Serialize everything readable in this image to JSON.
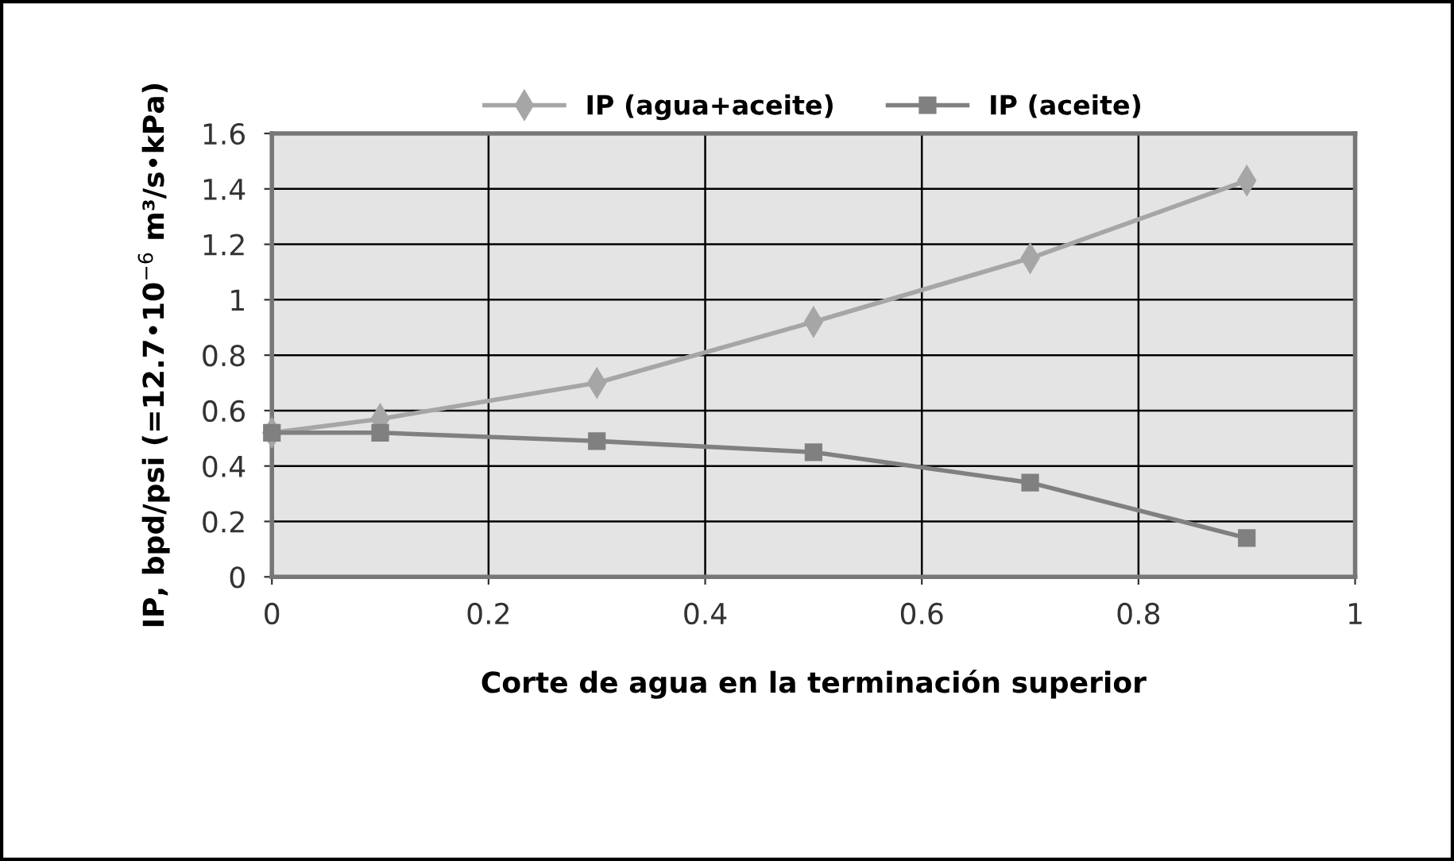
{
  "chart_data": {
    "type": "line",
    "xlabel": "Corte de agua en la terminación superior",
    "ylabel": "IP, bpd/psi (=12.7•10$^{−6}$ m³/s•kPa)",
    "x": [
      0,
      0.1,
      0.3,
      0.5,
      0.7,
      0.9
    ],
    "series": [
      {
        "name": "IP (agua+aceite)",
        "color": "#a6a6a6",
        "marker": "diamond",
        "values": [
          0.52,
          0.57,
          0.7,
          0.92,
          1.15,
          1.43
        ]
      },
      {
        "name": "IP (aceite)",
        "color": "#808080",
        "marker": "square",
        "values": [
          0.52,
          0.52,
          0.49,
          0.45,
          0.34,
          0.14
        ]
      }
    ],
    "xlim": [
      0,
      1
    ],
    "xticks": [
      0,
      0.2,
      0.4,
      0.6,
      0.8,
      1
    ],
    "ylim": [
      0,
      1.6
    ],
    "yticks": [
      0,
      0.2,
      0.4,
      0.6,
      0.8,
      1,
      1.2,
      1.4,
      1.6
    ],
    "grid": true,
    "legend": "top",
    "line_style": "solid"
  }
}
